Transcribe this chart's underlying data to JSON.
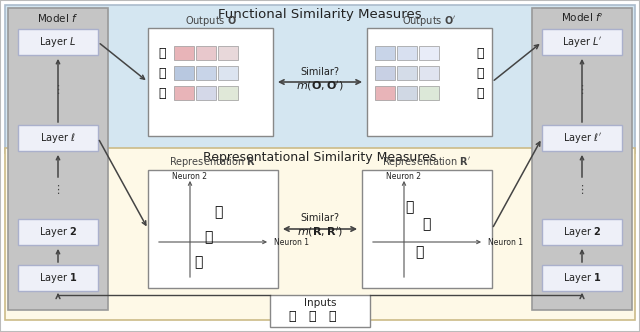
{
  "title_functional": "Functional Similarity Measures",
  "title_representational": "Representational Similarity Measures",
  "model_f_label": "Model $f$",
  "model_f_prime_label": "Model $f'$",
  "layers_left": [
    "Layer $L$",
    "Layer $\\ell$",
    "Layer $\\mathbf{2}$",
    "Layer $\\mathbf{1}$"
  ],
  "layers_right": [
    "Layer $L'$",
    "Layer $\\ell'$",
    "Layer $\\mathbf{2}$",
    "Layer $\\mathbf{1}$"
  ],
  "outputs_label": "Outputs $\\mathbf{O}$",
  "outputs_prime_label": "Outputs $\\mathbf{O}'$",
  "repr_label": "Representation $\\mathbf{R}$",
  "repr_prime_label": "Representation $\\mathbf{R}'$",
  "similar_functional_line1": "Similar?",
  "similar_functional_line2": "$m(\\mathbf{O},\\mathbf{O}')$",
  "similar_repr_line1": "Similar?",
  "similar_repr_line2": "$m(\\mathbf{R},\\mathbf{R}')$",
  "neuron1_label": "Neuron 1",
  "neuron2_label": "Neuron 2",
  "inputs_label": "Inputs",
  "functional_bg": "#d4e6f1",
  "representational_bg": "#fef9e7",
  "model_col_bg": "#d0d0d0",
  "layer_box_fill": "#eef0f8",
  "layer_box_edge": "#aab0cc",
  "output_box_fill": "#ffffff",
  "repr_box_fill": "#ffffff",
  "inputs_box_fill": "#ffffff",
  "arrow_color": "#444444",
  "text_color": "#222222",
  "bar_row1": [
    "#e8b4b8",
    "#e8c8cc",
    "#e8d8da"
  ],
  "bar_row2": [
    "#b8c8e0",
    "#c8d4e8",
    "#dce4f0"
  ],
  "bar_row3": [
    "#e8b4b8",
    "#d4d8e8",
    "#e0e8d8"
  ],
  "bar_row1_r": [
    "#c8d4e8",
    "#d8e0f0",
    "#e8ecf8"
  ],
  "bar_row2_r": [
    "#c8d0e4",
    "#d4dce8",
    "#e0e4f0"
  ],
  "bar_row3_r": [
    "#e8b4b8",
    "#d0d8e4",
    "#dce8d8"
  ]
}
